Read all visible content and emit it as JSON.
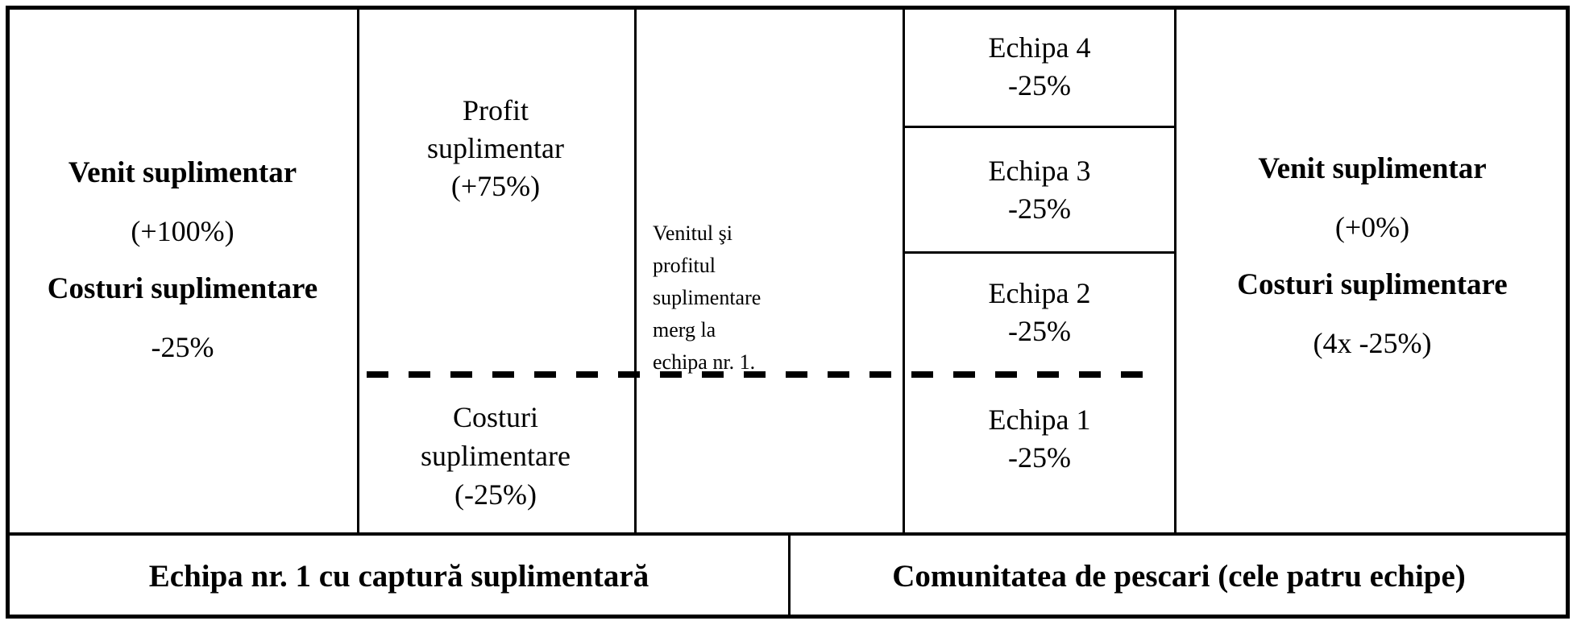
{
  "colors": {
    "background": "#ffffff",
    "border": "#000000",
    "text": "#000000"
  },
  "team1_panel": {
    "income_label": "Venit suplimentar",
    "income_value": "(+100%)",
    "costs_label": "Costuri suplimentare",
    "costs_value": "-25%"
  },
  "profit_cell": {
    "profit_text": "Profit\nsuplimentar\n(+75%)",
    "costs_text": "Costuri\nsuplimentare\n(-25%)"
  },
  "note_cell": {
    "text": "Venitul şi\nprofitul\nsuplimentare\nmerg la\nechipa nr. 1."
  },
  "teams_column": {
    "teams": [
      {
        "name": "Echipa 4",
        "value": "-25%"
      },
      {
        "name": "Echipa 3",
        "value": "-25%"
      },
      {
        "name": "Echipa 2",
        "value": "-25%"
      },
      {
        "name": "Echipa 1",
        "value": "-25%"
      }
    ]
  },
  "community_panel": {
    "income_label": "Venit suplimentar",
    "income_value": "(+0%)",
    "costs_label": "Costuri suplimentare",
    "costs_value": "(4x -25%)"
  },
  "footer": {
    "left_label": "Echipa nr. 1 cu captură suplimentară",
    "right_label": "Comunitatea de pescari (cele patru echipe)"
  }
}
